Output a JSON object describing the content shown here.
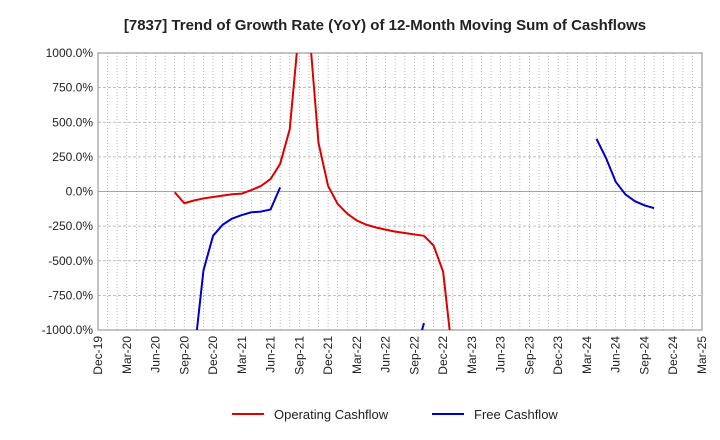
{
  "chart_data": {
    "type": "line",
    "title": "[7837]  Trend of Growth Rate (YoY) of 12-Month Moving Sum of Cashflows",
    "ylim": [
      -1000,
      1000
    ],
    "y_ticks": [
      "1000.0%",
      "750.0%",
      "500.0%",
      "250.0%",
      "0.0%",
      "-250.0%",
      "-500.0%",
      "-750.0%",
      "-1000.0%"
    ],
    "x_ticks": [
      "Dec-19",
      "Mar-20",
      "Jun-20",
      "Sep-20",
      "Dec-20",
      "Mar-21",
      "Jun-21",
      "Sep-21",
      "Dec-21",
      "Mar-22",
      "Jun-22",
      "Sep-22",
      "Dec-22",
      "Mar-23",
      "Jun-23",
      "Sep-23",
      "Dec-23",
      "Mar-24",
      "Jun-24",
      "Sep-24",
      "Dec-24",
      "Mar-25"
    ],
    "grid": true,
    "legend_position": "bottom-center",
    "series": [
      {
        "name": "Operating Cashflow",
        "color": "#dd0000",
        "points": [
          [
            "2020-08",
            -5
          ],
          [
            "2020-09",
            -85
          ],
          [
            "2020-10",
            -65
          ],
          [
            "2020-11",
            -50
          ],
          [
            "2020-12",
            -40
          ],
          [
            "2021-01",
            -30
          ],
          [
            "2021-02",
            -20
          ],
          [
            "2021-03",
            -15
          ],
          [
            "2021-04",
            10
          ],
          [
            "2021-05",
            40
          ],
          [
            "2021-06",
            90
          ],
          [
            "2021-07",
            200
          ],
          [
            "2021-08",
            450
          ],
          [
            "2021-09",
            1200
          ],
          [
            "2021-10",
            1200
          ],
          [
            "2021-11",
            350
          ],
          [
            "2021-12",
            40
          ],
          [
            "2022-01",
            -90
          ],
          [
            "2022-02",
            -160
          ],
          [
            "2022-03",
            -210
          ],
          [
            "2022-04",
            -240
          ],
          [
            "2022-05",
            -260
          ],
          [
            "2022-06",
            -275
          ],
          [
            "2022-07",
            -290
          ],
          [
            "2022-08",
            -300
          ],
          [
            "2022-09",
            -310
          ],
          [
            "2022-10",
            -320
          ],
          [
            "2022-11",
            -390
          ],
          [
            "2022-12",
            -580
          ],
          [
            "2023-01",
            -1200
          ]
        ]
      },
      {
        "name": "Free Cashflow",
        "color": "#0000cc",
        "points": [
          [
            "2020-10",
            -1200
          ],
          [
            "2020-11",
            -570
          ],
          [
            "2020-12",
            -320
          ],
          [
            "2021-01",
            -240
          ],
          [
            "2021-02",
            -195
          ],
          [
            "2021-03",
            -170
          ],
          [
            "2021-04",
            -150
          ],
          [
            "2021-05",
            -145
          ],
          [
            "2021-06",
            -130
          ],
          [
            "2021-07",
            30
          ]
        ],
        "extra_segments": [
          [
            [
              "2022-09",
              -1200
            ],
            [
              "2022-10",
              -950
            ]
          ],
          [
            [
              "2024-04",
              380
            ],
            [
              "2024-05",
              240
            ],
            [
              "2024-06",
              70
            ],
            [
              "2024-07",
              -20
            ],
            [
              "2024-08",
              -70
            ],
            [
              "2024-09",
              -100
            ],
            [
              "2024-10",
              -120
            ]
          ]
        ]
      }
    ]
  }
}
